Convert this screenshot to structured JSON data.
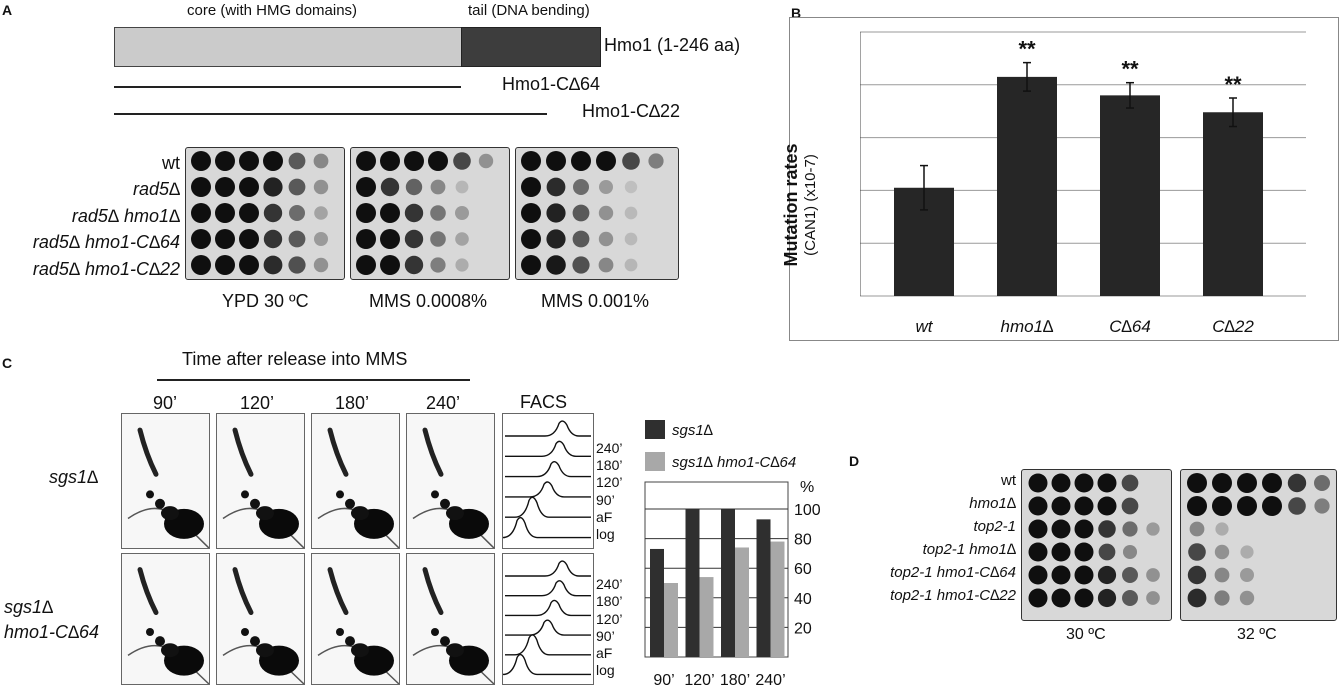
{
  "panels": {
    "a": "A",
    "b": "B",
    "c": "C",
    "d": "D"
  },
  "panelA": {
    "domain_core": "core (with HMG domains)",
    "domain_tail": "tail (DNA bending)",
    "protein": "Hmo1 (1-246 aa)",
    "construct1": "Hmo1-C∆64",
    "construct2": "Hmo1-C∆22",
    "strains": [
      "wt",
      "rad5∆",
      "rad5∆ hmo1∆",
      "rad5∆ hmo1-C∆64",
      "rad5∆ hmo1-C∆22"
    ],
    "conditions": [
      "YPD 30 ºC",
      "MMS 0.0008%",
      "MMS 0.001%"
    ]
  },
  "panelB": {
    "ylabel_bold": "Mutation rates",
    "ylabel_unit": "(CAN1) (x10-7)",
    "significance": "**"
  },
  "chart_data": [
    {
      "type": "bar",
      "categories": [
        "wt",
        "hmo1∆",
        "C∆64",
        "C∆22"
      ],
      "values": [
        2.05,
        4.15,
        3.8,
        3.48
      ],
      "errors": [
        0.42,
        0.27,
        0.24,
        0.27
      ],
      "significance": [
        "",
        "**",
        "**",
        "**"
      ],
      "ylabel": "Mutation rates (CAN1) (x10-7)",
      "ylim": [
        0,
        5
      ],
      "yticks": [
        0,
        1,
        2,
        3,
        4,
        5
      ],
      "grid": true,
      "color": "#262626"
    },
    {
      "type": "bar",
      "categories": [
        "90’",
        "120’",
        "180’",
        "240’"
      ],
      "series": [
        {
          "name": "sgs1∆",
          "values": [
            73,
            100,
            100,
            93
          ],
          "color": "#2f2f2f"
        },
        {
          "name": "sgs1∆ hmo1-C∆64",
          "values": [
            50,
            54,
            74,
            78
          ],
          "color": "#a8a8a8"
        }
      ],
      "ylabel": "%",
      "ylim": [
        0,
        100
      ],
      "yticks": [
        20,
        40,
        60,
        80,
        100
      ],
      "legend": "top",
      "grid": true
    }
  ],
  "panelC": {
    "title": "Time after release into MMS",
    "timepoints": [
      "90’",
      "120’",
      "180’",
      "240’"
    ],
    "facs_title": "FACS",
    "facs_labels": [
      "240’",
      "180’",
      "120’",
      "90’",
      "aF",
      "log"
    ],
    "rows": [
      {
        "label1": "sgs1∆",
        "label2": ""
      },
      {
        "label1": "sgs1∆",
        "label2": "hmo1-C∆64"
      }
    ],
    "percent_label": "%"
  },
  "panelD": {
    "strains": [
      "wt",
      "hmo1∆",
      "top2-1",
      "top2-1 hmo1∆",
      "top2-1 hmo1-C∆64",
      "top2-1 hmo1-C∆22"
    ],
    "temps": [
      "30 ºC",
      "32 ºC"
    ]
  }
}
